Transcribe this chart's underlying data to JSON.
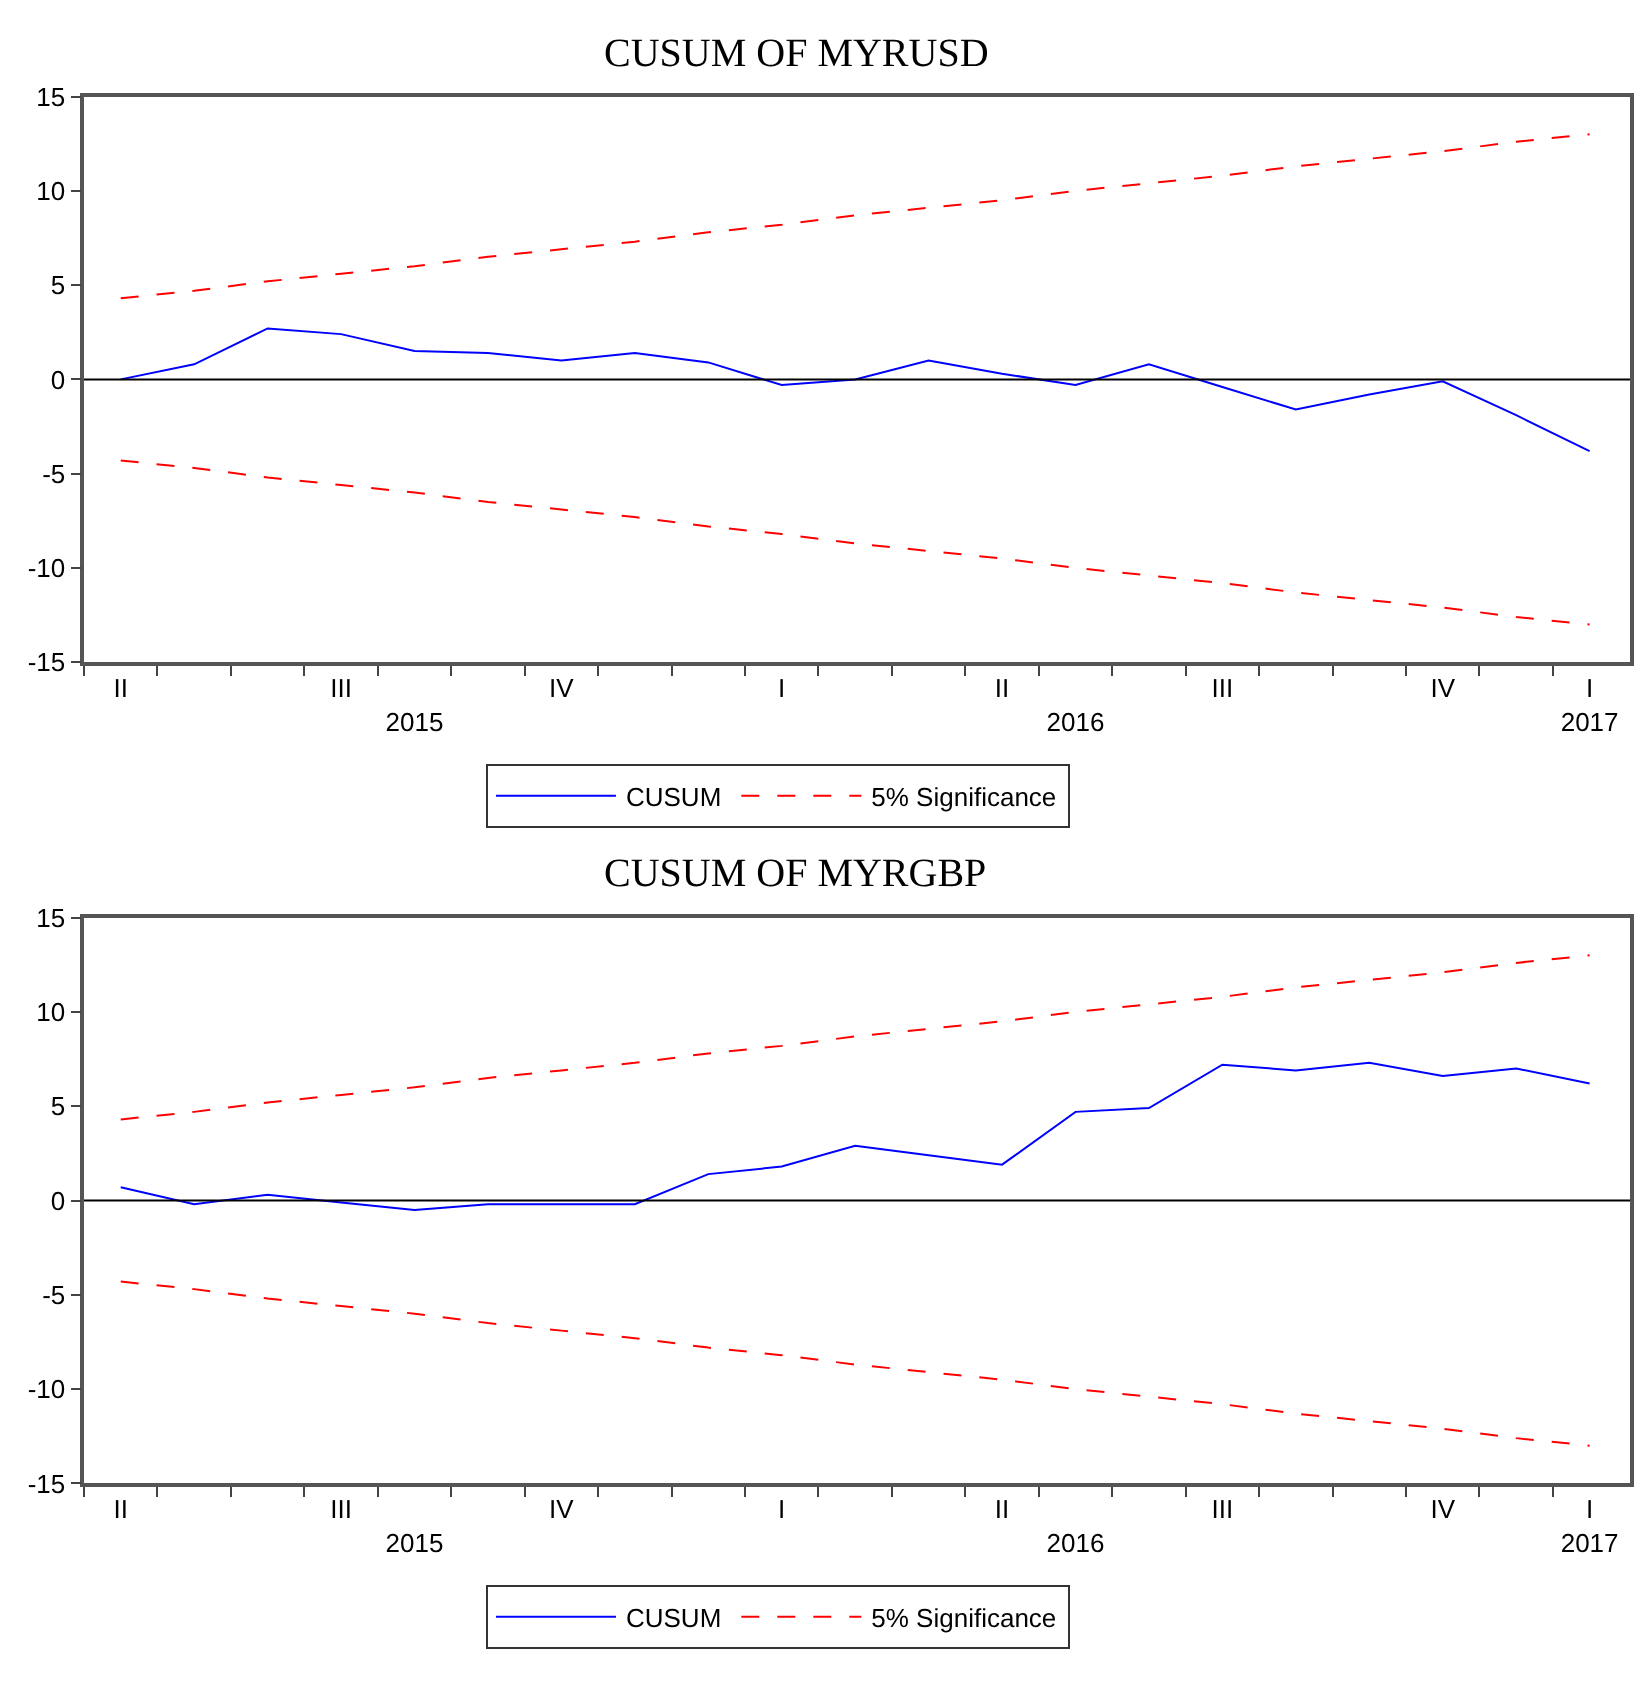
{
  "chart_data": [
    {
      "type": "line",
      "title": "CUSUM OF MYRUSD",
      "categories": [
        "II",
        null,
        null,
        "III",
        "\n2015",
        null,
        "IV",
        null,
        null,
        "I",
        null,
        null,
        "II",
        "\n2016",
        null,
        "III",
        null,
        null,
        "IV",
        null,
        "I\n2017"
      ],
      "series": [
        {
          "name": "CUSUM",
          "color": "#0000ff",
          "line_style": "solid",
          "values": [
            0.0,
            0.8,
            2.7,
            2.4,
            1.5,
            1.4,
            1.0,
            1.4,
            0.9,
            -0.3,
            0.0,
            1.0,
            0.3,
            -0.3,
            0.8,
            -0.4,
            -1.6,
            -0.8,
            -0.1,
            -1.9,
            -3.8
          ]
        },
        {
          "name": "5% Significance",
          "color": "#ff0000",
          "line_style": "dashed",
          "values": [
            4.3,
            4.7,
            5.2,
            5.6,
            6.0,
            6.5,
            6.9,
            7.3,
            7.8,
            8.2,
            8.7,
            9.1,
            9.5,
            10.0,
            10.4,
            10.8,
            11.3,
            11.7,
            12.1,
            12.6,
            13.0
          ]
        },
        {
          "color": "#ff0000",
          "line_style": "dashed",
          "values": [
            -4.3,
            -4.7,
            -5.2,
            -5.6,
            -6.0,
            -6.5,
            -6.9,
            -7.3,
            -7.8,
            -8.2,
            -8.7,
            -9.1,
            -9.5,
            -10.0,
            -10.4,
            -10.8,
            -11.3,
            -11.7,
            -12.1,
            -12.6,
            -13.0
          ]
        }
      ],
      "ylim": [
        -15,
        15
      ],
      "yticks": [
        -15,
        -10,
        -5,
        0,
        5,
        10,
        15
      ],
      "ref_lines": [
        {
          "axis": "y",
          "value": 0,
          "color": "#000000"
        }
      ],
      "legend": "bottom"
    },
    {
      "type": "line",
      "title": "CUSUM OF MYRGBP",
      "categories": [
        "II",
        null,
        null,
        "III",
        "\n2015",
        null,
        "IV",
        null,
        null,
        "I",
        null,
        null,
        "II",
        "\n2016",
        null,
        "III",
        null,
        null,
        "IV",
        null,
        "I\n2017"
      ],
      "series": [
        {
          "name": "CUSUM",
          "color": "#0000ff",
          "line_style": "solid",
          "values": [
            0.7,
            -0.2,
            0.3,
            -0.1,
            -0.5,
            -0.2,
            -0.2,
            -0.2,
            1.4,
            1.8,
            2.9,
            2.4,
            1.9,
            4.7,
            4.9,
            7.2,
            6.9,
            7.3,
            6.6,
            7.0,
            6.2
          ]
        },
        {
          "name": "5% Significance",
          "color": "#ff0000",
          "line_style": "dashed",
          "values": [
            4.3,
            4.7,
            5.2,
            5.6,
            6.0,
            6.5,
            6.9,
            7.3,
            7.8,
            8.2,
            8.7,
            9.1,
            9.5,
            10.0,
            10.4,
            10.8,
            11.3,
            11.7,
            12.1,
            12.6,
            13.0
          ]
        },
        {
          "color": "#ff0000",
          "line_style": "dashed",
          "values": [
            -4.3,
            -4.7,
            -5.2,
            -5.6,
            -6.0,
            -6.5,
            -6.9,
            -7.3,
            -7.8,
            -8.2,
            -8.7,
            -9.1,
            -9.5,
            -10.0,
            -10.4,
            -10.8,
            -11.3,
            -11.7,
            -12.1,
            -12.6,
            -13.0
          ]
        }
      ],
      "ylim": [
        -15,
        15
      ],
      "yticks": [
        -15,
        -10,
        -5,
        0,
        5,
        10,
        15
      ],
      "ref_lines": [
        {
          "axis": "y",
          "value": 0,
          "color": "#000000"
        }
      ],
      "legend": "bottom"
    }
  ]
}
